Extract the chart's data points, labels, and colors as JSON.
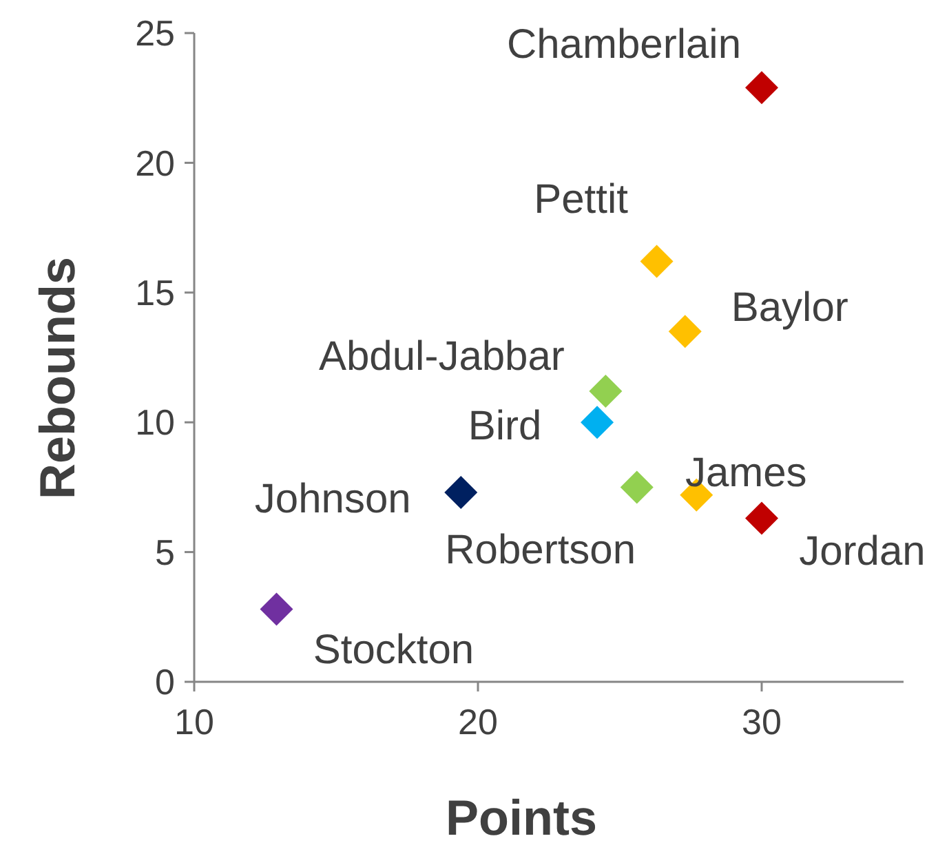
{
  "chart_data": {
    "type": "scatter",
    "xlabel": "Points",
    "ylabel": "Rebounds",
    "xlim": [
      10,
      35
    ],
    "ylim": [
      0,
      25
    ],
    "xticks": [
      10,
      20,
      30
    ],
    "yticks": [
      0,
      5,
      10,
      15,
      20,
      25
    ],
    "grid": false,
    "legend": false,
    "marker": "diamond",
    "series": [
      {
        "name": "Chamberlain",
        "color": "#c00000",
        "x": [
          30.0
        ],
        "values": [
          22.9
        ]
      },
      {
        "name": "Pettit",
        "color": "#ffc000",
        "x": [
          26.3
        ],
        "values": [
          16.2
        ]
      },
      {
        "name": "Baylor",
        "color": "#ffc000",
        "x": [
          27.3
        ],
        "values": [
          13.5
        ]
      },
      {
        "name": "Abdul-Jabbar",
        "color": "#92d050",
        "x": [
          24.5
        ],
        "values": [
          11.2
        ]
      },
      {
        "name": "Bird",
        "color": "#00b0f0",
        "x": [
          24.2
        ],
        "values": [
          10.0
        ]
      },
      {
        "name": "Johnson",
        "color": "#002060",
        "x": [
          19.4
        ],
        "values": [
          7.3
        ]
      },
      {
        "name": "Robertson",
        "color": "#92d050",
        "x": [
          25.6
        ],
        "values": [
          7.5
        ]
      },
      {
        "name": "James",
        "color": "#ffc000",
        "x": [
          27.7
        ],
        "values": [
          7.2
        ]
      },
      {
        "name": "Jordan",
        "color": "#c00000",
        "x": [
          30.0
        ],
        "values": [
          6.3
        ]
      },
      {
        "name": "Stockton",
        "color": "#7030a0",
        "x": [
          12.9
        ],
        "values": [
          2.8
        ]
      }
    ]
  }
}
